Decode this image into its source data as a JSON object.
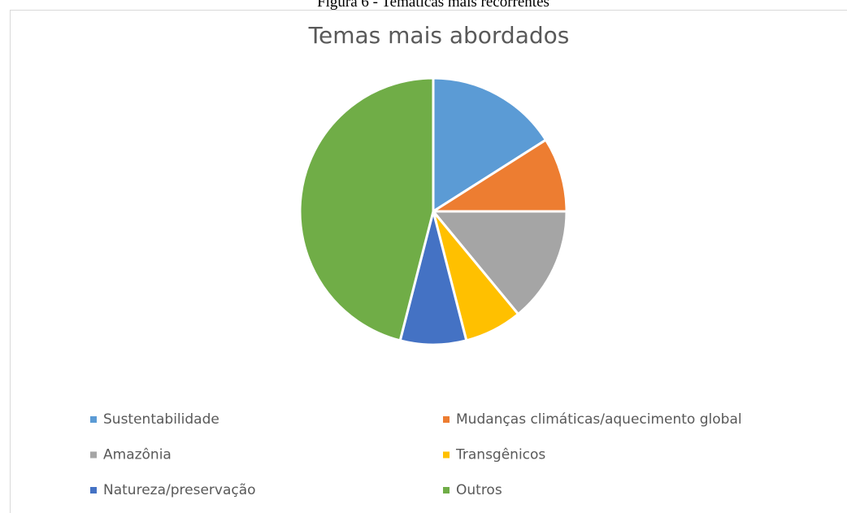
{
  "chart_data": {
    "type": "pie",
    "caption": "Figura 6 - Temáticas mais recorrentes",
    "title": "Temas mais abordados",
    "categories": [
      "Sustentabilidade",
      "Mudanças climáticas/aquecimento global",
      "Amazônia",
      "Transgênicos",
      "Natureza/preservação",
      "Outros"
    ],
    "values": [
      16,
      9,
      14,
      7,
      8,
      46
    ],
    "colors": [
      "#5b9bd5",
      "#ed7d31",
      "#a5a5a5",
      "#ffc000",
      "#4472c4",
      "#70ad47"
    ],
    "legend": "bottom"
  }
}
